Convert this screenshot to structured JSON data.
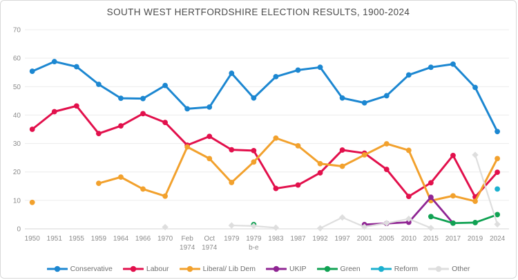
{
  "window": {
    "background": "#ffffff",
    "border_color": "#d8d8d8"
  },
  "chart_data": {
    "type": "line",
    "title": "SOUTH WEST HERTFORDSHIRE ELECTION RESULTS, 1900-2024",
    "xlabel": "",
    "ylabel": "",
    "ylim": [
      0,
      70
    ],
    "y_ticks": [
      0,
      10,
      20,
      30,
      40,
      50,
      60,
      70
    ],
    "grid": true,
    "legend_position": "bottom",
    "grid_color": "#ececec",
    "axis_line_color": "#d6d6d6",
    "tick_label_color": "#8b8b8b",
    "categories": [
      "1950",
      "1951",
      "1955",
      "1959",
      "1964",
      "1966",
      "1970",
      "Feb\n1974",
      "Oct\n1974",
      "1979",
      "1979\nb-e",
      "1983",
      "1987",
      "1992",
      "1997",
      "2001",
      "2005",
      "2010",
      "2015",
      "2017",
      "2019",
      "2024"
    ],
    "series": [
      {
        "name": "Conservative",
        "color": "#1c87d1",
        "marker": "circle",
        "line_width": 3,
        "values": [
          55.4,
          58.8,
          57.0,
          50.8,
          45.9,
          45.8,
          50.4,
          42.2,
          42.8,
          54.7,
          46.0,
          53.5,
          55.8,
          56.8,
          46.0,
          44.3,
          46.8,
          54.1,
          56.8,
          57.9,
          49.7,
          34.2
        ]
      },
      {
        "name": "Labour",
        "color": "#e2104c",
        "marker": "circle",
        "line_width": 3,
        "values": [
          35.0,
          41.2,
          43.2,
          33.5,
          36.2,
          40.5,
          37.4,
          29.4,
          32.5,
          27.8,
          27.5,
          14.2,
          15.4,
          19.7,
          27.7,
          26.6,
          20.9,
          11.4,
          16.2,
          25.8,
          11.2,
          19.9
        ]
      },
      {
        "name": "Liberal/ Lib Dem",
        "color": "#f2a12d",
        "marker": "circle",
        "line_width": 3,
        "values": [
          9.3,
          null,
          null,
          16.0,
          18.2,
          14.0,
          11.5,
          28.8,
          24.7,
          16.3,
          23.5,
          31.9,
          29.2,
          22.9,
          22.0,
          26.0,
          29.9,
          27.6,
          9.9,
          11.6,
          9.7,
          24.7
        ]
      },
      {
        "name": "UKIP",
        "color": "#8f2593",
        "marker": "circle",
        "line_width": 2.8,
        "values": [
          null,
          null,
          null,
          null,
          null,
          null,
          null,
          null,
          null,
          null,
          null,
          null,
          null,
          null,
          null,
          1.5,
          1.9,
          2.3,
          11.1,
          2.0,
          null,
          null
        ]
      },
      {
        "name": "Green",
        "color": "#10a253",
        "marker": "circle",
        "line_width": 2.8,
        "values": [
          null,
          null,
          null,
          null,
          null,
          null,
          null,
          null,
          null,
          null,
          1.5,
          null,
          null,
          null,
          null,
          null,
          null,
          null,
          4.3,
          2.0,
          2.2,
          5.0
        ]
      },
      {
        "name": "Reform",
        "color": "#1cb0cf",
        "marker": "circle",
        "line_width": 2.8,
        "values": [
          null,
          null,
          null,
          null,
          null,
          null,
          null,
          null,
          null,
          null,
          null,
          null,
          null,
          null,
          null,
          null,
          null,
          null,
          null,
          null,
          null,
          14.0
        ]
      },
      {
        "name": "Other",
        "color": "#dedede",
        "marker": "diamond",
        "line_width": 2.2,
        "values": [
          null,
          null,
          null,
          null,
          null,
          null,
          0.6,
          null,
          null,
          1.2,
          1.0,
          0.4,
          null,
          0.2,
          4.0,
          0.7,
          2.0,
          3.5,
          0.3,
          null,
          26.0,
          1.6
        ]
      }
    ]
  }
}
